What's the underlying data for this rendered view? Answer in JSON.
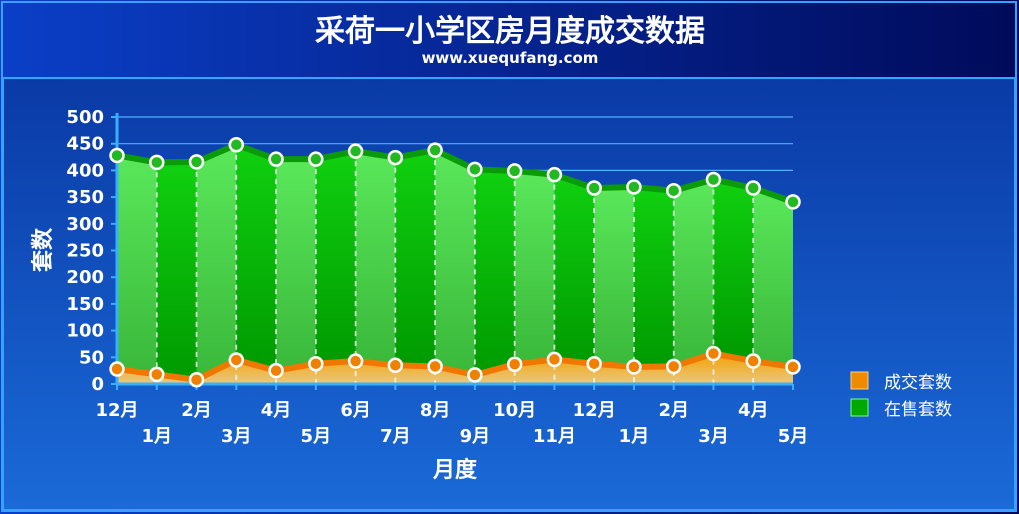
{
  "chart_data": {
    "type": "area",
    "title": "采荷一小学区房月度成交数据",
    "subtitle": "www.xuequfang.com",
    "xlabel": "月度",
    "ylabel": "套数",
    "ylim": [
      0,
      500
    ],
    "yticks": [
      0,
      50,
      100,
      150,
      200,
      250,
      300,
      350,
      400,
      450,
      500
    ],
    "categories": [
      "12月",
      "1月",
      "2月",
      "3月",
      "4月",
      "5月",
      "6月",
      "7月",
      "8月",
      "9月",
      "10月",
      "11月",
      "12月",
      "1月",
      "2月",
      "3月",
      "4月",
      "5月"
    ],
    "series": [
      {
        "name": "成交套数",
        "color": "#f08a00",
        "values": [
          28,
          18,
          8,
          45,
          25,
          38,
          43,
          35,
          33,
          17,
          37,
          46,
          38,
          32,
          33,
          57,
          43,
          32
        ]
      },
      {
        "name": "在售套数",
        "color": "#00b800",
        "values": [
          428,
          415,
          416,
          448,
          421,
          421,
          436,
          424,
          438,
          402,
          399,
          392,
          367,
          369,
          362,
          383,
          367,
          341
        ]
      }
    ],
    "legend_position": "right",
    "grid": true
  }
}
